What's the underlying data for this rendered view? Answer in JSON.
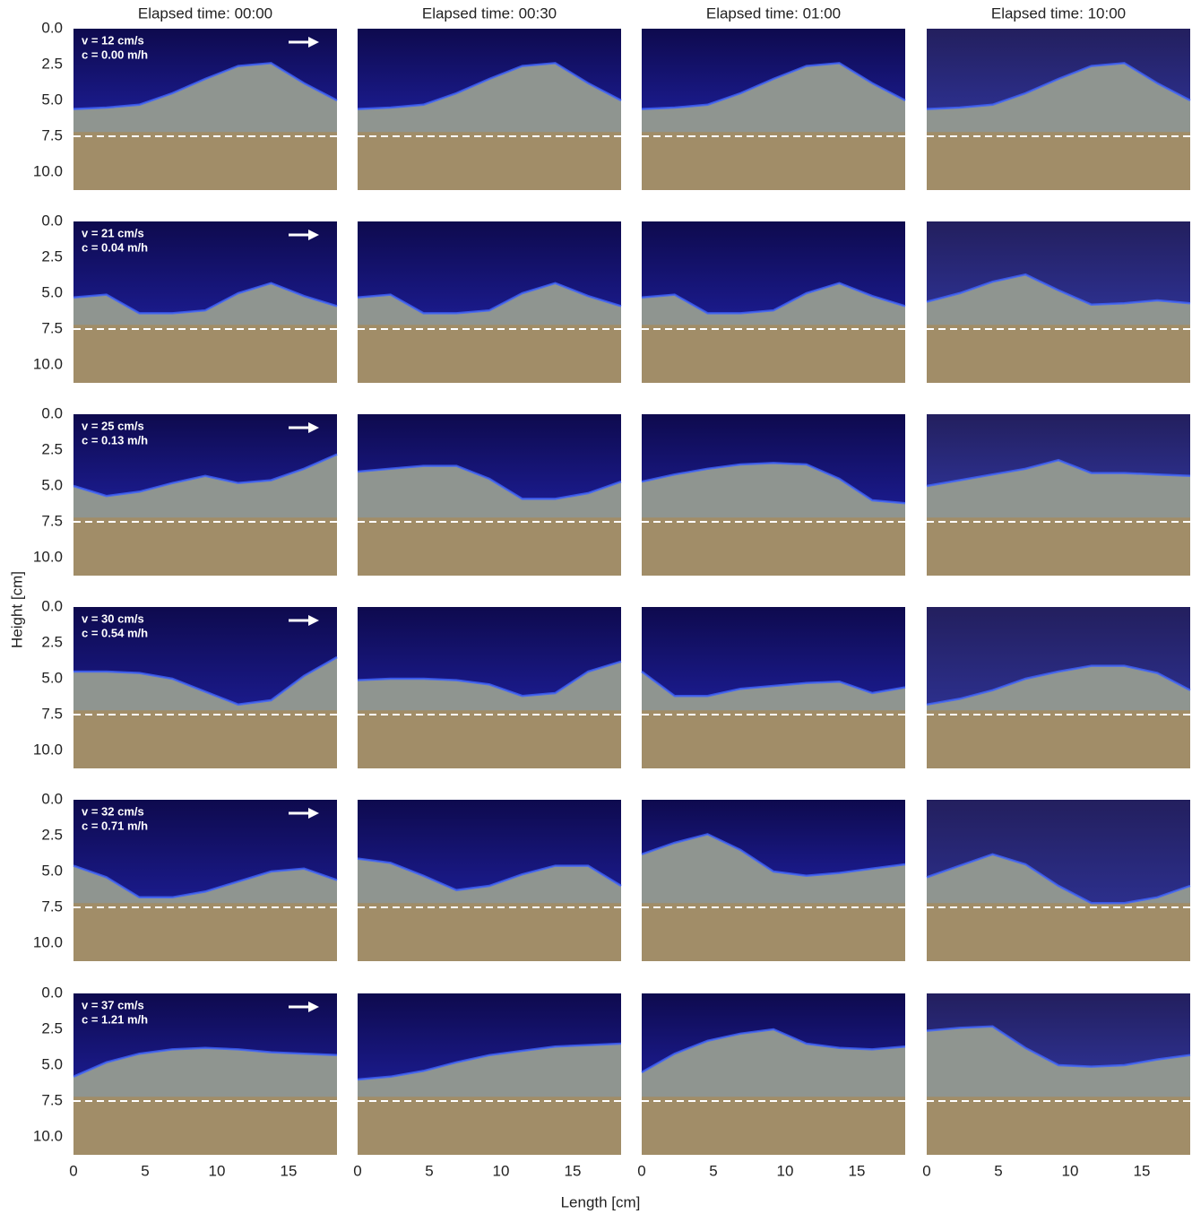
{
  "column_titles": [
    "Elapsed time: 00:00",
    "Elapsed time: 00:30",
    "Elapsed time: 01:00",
    "Elapsed time: 10:00"
  ],
  "rows": [
    {
      "velocity": "v = 12 cm/s",
      "rate": "c = 0.00 m/h"
    },
    {
      "velocity": "v = 21 cm/s",
      "rate": "c = 0.04 m/h"
    },
    {
      "velocity": "v = 25 cm/s",
      "rate": "c = 0.13 m/h"
    },
    {
      "velocity": "v = 30 cm/s",
      "rate": "c = 0.54 m/h"
    },
    {
      "velocity": "v = 32 cm/s",
      "rate": "c = 0.71 m/h"
    },
    {
      "velocity": "v = 37 cm/s",
      "rate": "c = 1.21 m/h"
    }
  ],
  "axes": {
    "y_label": "Height [cm]",
    "x_label": "Length [cm]",
    "yticks": [
      {
        "value": 0,
        "label": "0.0"
      },
      2.5,
      {
        "value": 5,
        "label": "5.0"
      },
      7.5,
      {
        "value": 10,
        "label": "10.0"
      }
    ],
    "xticks": [
      0,
      5,
      10,
      15
    ]
  }
}
